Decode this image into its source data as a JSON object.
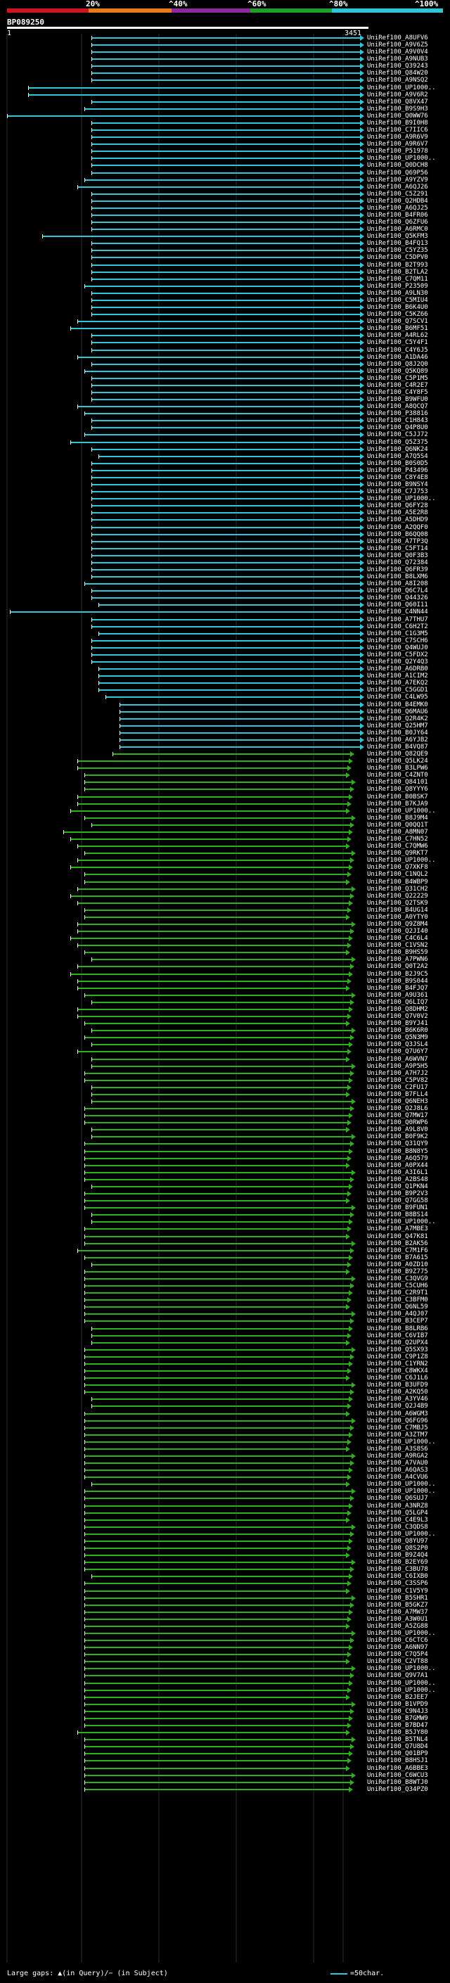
{
  "scale": {
    "labels": [
      "20%",
      "^40%",
      "^60%",
      "^80%",
      "^100%"
    ],
    "colors": [
      "#d0141e",
      "#e87b18",
      "#8b2a9c",
      "#1f9f2a",
      "#2ec7d8"
    ]
  },
  "query": {
    "name": "BP089250",
    "start": "1",
    "end": "3451"
  },
  "legend": {
    "text": "Large gaps: ▲(in Query)/− (in Subject)",
    "scale_text": "=50char."
  },
  "colors": {
    "cyan": "#2ec7d8",
    "green": "#2fae1e"
  },
  "hits": [
    "UniRef100_A8UFV6",
    "UniRef100_A9V6Z5",
    "UniRef100_A9V0V4",
    "UniRef100_A9NUB3",
    "UniRef100_Q39243",
    "UniRef100_Q84W20",
    "UniRef100_A9NSQ2",
    "UniRef100_UP1000..",
    "UniRef100_A9V6R2",
    "UniRef100_Q8VX47",
    "UniRef100_B9S9H3",
    "UniRef100_Q0WW76",
    "UniRef100_B9I0H8",
    "UniRef100_C7IIC6",
    "UniRef100_A9R6V9",
    "UniRef100_A9R6V7",
    "UniRef100_P51978",
    "UniRef100_UP1000..",
    "UniRef100_Q0DCH8",
    "UniRef100_Q69P56",
    "UniRef100_A9YZV9",
    "UniRef100_A6QJ26",
    "UniRef100_C5Z291",
    "UniRef100_Q2HDB4",
    "UniRef100_A6QJ25",
    "UniRef100_B4FR06",
    "UniRef100_Q6ZFU6",
    "UniRef100_A6RMC0",
    "UniRef100_Q5KFM3",
    "UniRef100_B4FQ13",
    "UniRef100_C5YZ35",
    "UniRef100_C5DPV0",
    "UniRef100_B2T993",
    "UniRef100_B2TLA2",
    "UniRef100_C7QM11",
    "UniRef100_P23509",
    "UniRef100_A9LN30",
    "UniRef100_C5MIU4",
    "UniRef100_B6K4U0",
    "UniRef100_C5KZ66",
    "UniRef100_Q7SCV1",
    "UniRef100_B6MF51",
    "UniRef100_A4RL62",
    "UniRef100_C5Y4F1",
    "UniRef100_C4Y6J5",
    "UniRef100_A1DA46",
    "UniRef100_Q8J2Q0",
    "UniRef100_Q5KQ89",
    "UniRef100_C5P1M5",
    "UniRef100_C4R2E7",
    "UniRef100_C4Y8F5",
    "UniRef100_B9WFU0",
    "UniRef100_A8QCQ7",
    "UniRef100_P38816",
    "UniRef100_C1H843",
    "UniRef100_Q4P8U0",
    "UniRef100_C5JJ72",
    "UniRef100_Q5Z375",
    "UniRef100_Q6NK24",
    "UniRef100_A7Q5S4",
    "UniRef100_B0S0D5",
    "UniRef100_P43496",
    "UniRef100_C8Y4E8",
    "UniRef100_B9NSY4",
    "UniRef100_C7J753",
    "UniRef100_UP1000..",
    "UniRef100_Q6FY28",
    "UniRef100_A5E2R8",
    "UniRef100_A5DHD9",
    "UniRef100_A2QQF0",
    "UniRef100_B6QQ08",
    "UniRef100_A7TP3Q",
    "UniRef100_C5FT14",
    "UniRef100_Q0F3B3",
    "UniRef100_Q72384",
    "UniRef100_Q6FR39",
    "UniRef100_B8LXM6",
    "UniRef100_A8I208",
    "UniRef100_Q6C7L4",
    "UniRef100_Q44326",
    "UniRef100_Q60I11",
    "UniRef100_C4NN44",
    "UniRef100_A7THU7",
    "UniRef100_C6H2T2",
    "UniRef100_C1G3M5",
    "UniRef100_C7SCH6",
    "UniRef100_Q4WUJ0",
    "UniRef100_C5FDX2",
    "UniRef100_Q2Y4Q3",
    "UniRef100_A6DRB0",
    "UniRef100_A1CIM2",
    "UniRef100_A7EKQ2",
    "UniRef100_C5GGD1",
    "UniRef100_C4LW95",
    "UniRef100_B4EMK0",
    "UniRef100_Q6MAU6",
    "UniRef100_Q2R4K2",
    "UniRef100_Q25HM7",
    "UniRef100_B0JY64",
    "UniRef100_A6YJB2",
    "UniRef100_B4VQ87",
    "UniRef100_Q82QE9",
    "UniRef100_Q5LK24",
    "UniRef100_B3LPW6",
    "UniRef100_C4ZNT0",
    "UniRef100_Q84101",
    "UniRef100_Q8YYY6",
    "UniRef100_B0BSK7",
    "UniRef100_B7KJA9",
    "UniRef100_UP1000..",
    "UniRef100_B8J9M4",
    "UniRef100_Q0QQ1T",
    "UniRef100_A8MN07",
    "UniRef100_C7HN52",
    "UniRef100_C7QMW6",
    "UniRef100_Q9RKT7",
    "UniRef100_UP1000..",
    "UniRef100_Q7XKF8",
    "UniRef100_C1NQL2",
    "UniRef100_B4WBP9",
    "UniRef100_Q31CH2",
    "UniRef100_Q22229",
    "UniRef100_Q2TSK9",
    "UniRef100_B4UG14",
    "UniRef100_A0YTY0",
    "UniRef100_Q9Z8M4",
    "UniRef100_Q2JI40",
    "UniRef100_C4C6L4",
    "UniRef100_C1VSN2",
    "UniRef100_B9HS59",
    "UniRef100_A7PWN6",
    "UniRef100_Q0T2A2",
    "UniRef100_B2J9C5",
    "UniRef100_B9S044",
    "UniRef100_B4FJQ7",
    "UniRef100_A9U361",
    "UniRef100_Q6LIQ7",
    "UniRef100_Q8DHM2",
    "UniRef100_Q7V0V2",
    "UniRef100_B9YJ41",
    "UniRef100_B6K6R0",
    "UniRef100_Q5N3M9",
    "UniRef100_Q3JSL4",
    "UniRef100_Q7U6Y7",
    "UniRef100_A6WVN7",
    "UniRef100_A9P5H5",
    "UniRef100_A7H7J2",
    "UniRef100_C5PV82",
    "UniRef100_C2FU17",
    "UniRef100_B7FLL4",
    "UniRef100_Q6NEH3",
    "UniRef100_Q2J8L6",
    "UniRef100_Q7MW17",
    "UniRef100_Q0RWP6",
    "UniRef100_A9L8V0",
    "UniRef100_B0F9K2",
    "UniRef100_Q31QY9",
    "UniRef100_B8N8Y5",
    "UniRef100_A6Q579",
    "UniRef100_A0PX44",
    "UniRef100_A3I6L1",
    "UniRef100_A2BS48",
    "UniRef100_Q1PKN4",
    "UniRef100_B9P2V3",
    "UniRef100_Q7GG58",
    "UniRef100_B9FUN1",
    "UniRef100_B8BS14",
    "UniRef100_UP1000..",
    "UniRef100_A7MBE3",
    "UniRef100_Q47K81",
    "UniRef100_B2AK56",
    "UniRef100_C7M1F6",
    "UniRef100_B7A615",
    "UniRef100_A0ZD10",
    "UniRef100_B9Z775",
    "UniRef100_C3QVG9",
    "UniRef100_C5CUH6",
    "UniRef100_C2R9T1",
    "UniRef100_C3BFM0",
    "UniRef100_Q6NL59",
    "UniRef100_A4QJ07",
    "UniRef100_B3CEP7",
    "UniRef100_B8LRB6",
    "UniRef100_C6VIB7",
    "UniRef100_Q2UPX4",
    "UniRef100_Q5SX93",
    "UniRef100_C9P1Z8",
    "UniRef100_C1YRN2",
    "UniRef100_C8WKX4",
    "UniRef100_C6J1L6",
    "UniRef100_B3UFD9",
    "UniRef100_A2KQ50",
    "UniRef100_A3YV46",
    "UniRef100_Q2J4B9",
    "UniRef100_A6WGM3",
    "UniRef100_Q6FG96",
    "UniRef100_C7MBJ5",
    "UniRef100_A3ZTM7",
    "UniRef100_UP1000..",
    "UniRef100_A3S8S6",
    "UniRef100_A9RGA2",
    "UniRef100_A7VAU0",
    "UniRef100_A6QAS3",
    "UniRef100_A4CVU6",
    "UniRef100_UP1000..",
    "UniRef100_UP1000..",
    "UniRef100_Q6SUJ7",
    "UniRef100_A3NRZ8",
    "UniRef100_Q5LGP4",
    "UniRef100_C4E9L3",
    "UniRef100_C3QDS8",
    "UniRef100_UP1000..",
    "UniRef100_Q8YU97",
    "UniRef100_Q8S2P0",
    "UniRef100_B9Z4Q4",
    "UniRef100_B2EY69",
    "UniRef100_C3BU78",
    "UniRef100_C6IXB0",
    "UniRef100_C3SSP6",
    "UniRef100_C1V5Y9",
    "UniRef100_B5SHR1",
    "UniRef100_B5GKZ7",
    "UniRef100_A7MW37",
    "UniRef100_A3W0U1",
    "UniRef100_A5ZG88",
    "UniRef100_UP1000..",
    "UniRef100_C6CTC6",
    "UniRef100_A6NN97",
    "UniRef100_C7Q5P4",
    "UniRef100_C2VT88",
    "UniRef100_UP1000..",
    "UniRef100_Q9V7A1",
    "UniRef100_UP1000..",
    "UniRef100_UP1000..",
    "UniRef100_B2JEE7",
    "UniRef100_B1VPD9",
    "UniRef100_C9N4J3",
    "UniRef100_B7GMW9",
    "UniRef100_B7BD47",
    "UniRef100_B5JY80",
    "UniRef100_B5TNL4",
    "UniRef100_Q7U8D4",
    "UniRef100_Q01BP9",
    "UniRef100_B8HSJ1",
    "UniRef100_A6BBE3",
    "UniRef100_C6WCU3",
    "UniRef100_B8WTJ0",
    "UniRef100_Q34PZ0"
  ]
}
